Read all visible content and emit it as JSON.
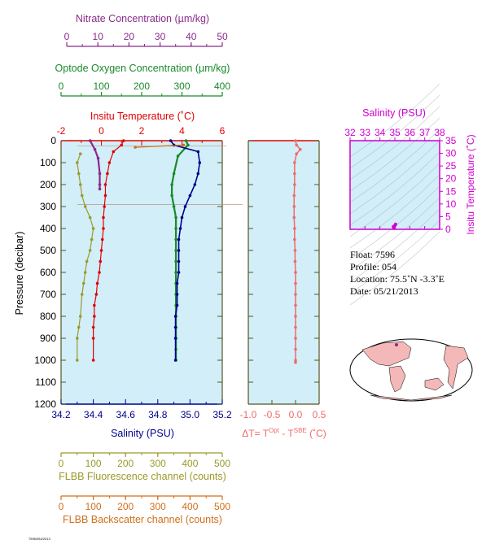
{
  "colors": {
    "nitrate": "#8b2a8b",
    "oxygen": "#1a8a2a",
    "temperature": "#e00000",
    "salinity": "#00008b",
    "fluorescence": "#9a9a2a",
    "backscatter": "#d0701a",
    "delta": "#f06a6a",
    "ts_axis": "#d000d0",
    "plot_bg": "#d2eef8",
    "land": "#f4b8b8"
  },
  "axes": {
    "nitrate": {
      "label": "Nitrate Concentration (µm/kg)",
      "ticks": [
        "0",
        "10",
        "20",
        "30",
        "40",
        "50"
      ],
      "range": [
        0,
        50
      ]
    },
    "oxygen": {
      "label": "Optode Oxygen Concentration (µm/kg)",
      "ticks": [
        "0",
        "100",
        "200",
        "300",
        "400"
      ],
      "range": [
        0,
        400
      ]
    },
    "temperature": {
      "label": "Insitu Temperature (˚C)",
      "ticks": [
        "-2",
        "0",
        "2",
        "4",
        "6"
      ],
      "range": [
        -2,
        6
      ]
    },
    "salinity": {
      "label": "Salinity (PSU)",
      "ticks": [
        "34.2",
        "34.4",
        "34.6",
        "34.8",
        "35.0",
        "35.2"
      ],
      "range": [
        34.2,
        35.2
      ]
    },
    "pressure": {
      "label": "Pressure (decibar)",
      "ticks": [
        "0",
        "100",
        "200",
        "300",
        "400",
        "500",
        "600",
        "700",
        "800",
        "900",
        "1000",
        "1100",
        "1200"
      ],
      "range": [
        0,
        1200
      ]
    },
    "fluorescence": {
      "label": "FLBB Fluorescence channel (counts)",
      "ticks": [
        "0",
        "100",
        "200",
        "300",
        "400",
        "500"
      ],
      "range": [
        0,
        500
      ]
    },
    "backscatter": {
      "label": "FLBB Backscatter channel (counts)",
      "ticks": [
        "0",
        "100",
        "200",
        "300",
        "400",
        "500"
      ],
      "range": [
        0,
        500
      ]
    },
    "delta": {
      "label_prefix": "ΔT= T",
      "sup1": "Opt",
      "label_mid": " - T",
      "sup2": "SBE",
      "label_suffix": " (˚C)",
      "ticks": [
        "-1.0",
        "-0.5",
        "0.0",
        "0.5"
      ],
      "range": [
        -1.0,
        0.5
      ]
    },
    "ts_salinity": {
      "label": "Salinity (PSU)",
      "ticks": [
        "32",
        "33",
        "34",
        "35",
        "36",
        "37",
        "38"
      ],
      "range": [
        32,
        38
      ]
    },
    "ts_temperature": {
      "label": "Insitu Temperature (˚C)",
      "ticks": [
        "0",
        "5",
        "10",
        "15",
        "20",
        "25",
        "30",
        "35"
      ],
      "range": [
        0,
        35
      ]
    }
  },
  "info": {
    "float": "Float:  7596",
    "profile": "Profile:  054",
    "location": "Location:  75.5˚N  -3.3˚E",
    "date": "Date:  05/21/2013"
  },
  "footer_tag": "7596/054/2013",
  "chart_data": [
    {
      "type": "line",
      "title": "",
      "xlabel": "Insitu Temperature (˚C)",
      "ylabel": "Pressure (decibar)",
      "xlim": [
        -2,
        6
      ],
      "ylim": [
        1200,
        0
      ],
      "series": [
        {
          "name": "Insitu Temperature (˚C)",
          "x": [
            1.1,
            1.0,
            0.6,
            0.4,
            0.3,
            0.2,
            0.2,
            0.15,
            0.1,
            0.1,
            0.05,
            0.0,
            -0.05,
            -0.1,
            -0.2,
            -0.25,
            -0.35,
            -0.35,
            -0.4,
            -0.4,
            -0.4
          ],
          "y": [
            0,
            20,
            50,
            100,
            150,
            200,
            250,
            300,
            350,
            400,
            450,
            500,
            550,
            600,
            650,
            700,
            750,
            800,
            850,
            900,
            1000
          ]
        }
      ]
    },
    {
      "type": "line",
      "xlabel": "Salinity (PSU)",
      "ylabel": "Pressure (decibar)",
      "xlim": [
        34.2,
        35.2
      ],
      "ylim": [
        1200,
        0
      ],
      "series": [
        {
          "name": "Salinity (PSU)",
          "x": [
            34.88,
            34.9,
            35.05,
            35.06,
            35.05,
            35.03,
            35.0,
            34.97,
            34.95,
            34.94,
            34.93,
            34.93,
            34.93,
            34.93,
            34.92,
            34.92,
            34.92,
            34.91,
            34.91,
            34.91,
            34.91
          ],
          "y": [
            0,
            20,
            50,
            100,
            150,
            200,
            250,
            300,
            350,
            400,
            450,
            500,
            550,
            600,
            650,
            700,
            750,
            800,
            850,
            900,
            1000
          ]
        }
      ]
    },
    {
      "type": "line",
      "xlabel": "Optode Oxygen Concentration (µm/kg)",
      "ylabel": "Pressure (decibar)",
      "xlim": [
        0,
        400
      ],
      "ylim": [
        1200,
        0
      ],
      "series": [
        {
          "name": "Optode Oxygen Concentration (µm/kg)",
          "x": [
            310,
            315,
            290,
            280,
            275,
            275,
            280,
            285,
            285,
            285,
            285,
            285,
            285,
            285,
            285,
            285,
            285,
            285,
            285,
            285,
            285
          ],
          "y": [
            0,
            20,
            70,
            150,
            200,
            250,
            300,
            350,
            400,
            450,
            500,
            550,
            600,
            650,
            700,
            750,
            800,
            850,
            900,
            950,
            1000
          ]
        }
      ]
    },
    {
      "type": "line",
      "xlabel": "Nitrate Concentration (µm/kg)",
      "ylabel": "Pressure (decibar)",
      "xlim": [
        0,
        50
      ],
      "ylim": [
        1200,
        0
      ],
      "series": [
        {
          "name": "Nitrate Concentration (µm/kg)",
          "x": [
            9,
            10.5,
            11.5,
            12,
            12,
            12
          ],
          "y": [
            0,
            40,
            80,
            150,
            200,
            220
          ]
        }
      ]
    },
    {
      "type": "line",
      "xlabel": "FLBB Fluorescence channel (counts)",
      "ylabel": "Pressure (decibar)",
      "xlim": [
        0,
        500
      ],
      "ylim": [
        1200,
        0
      ],
      "series": [
        {
          "name": "FLBB Fluorescence channel (counts)",
          "x": [
            60,
            50,
            55,
            60,
            65,
            75,
            90,
            100,
            95,
            90,
            80,
            75,
            70,
            65,
            60,
            55,
            50,
            50
          ],
          "y": [
            60,
            100,
            150,
            200,
            250,
            300,
            350,
            400,
            450,
            500,
            550,
            600,
            650,
            700,
            800,
            850,
            900,
            1000
          ]
        }
      ]
    },
    {
      "type": "line",
      "xlabel": "FLBB Backscatter channel (counts)",
      "ylabel": "Pressure (decibar)",
      "xlim": [
        0,
        500
      ],
      "ylim": [
        1200,
        0
      ],
      "series": [
        {
          "name": "FLBB Backscatter channel (counts)",
          "x": [
            380,
            230
          ],
          "y": [
            20,
            30
          ]
        }
      ]
    },
    {
      "type": "line",
      "xlabel": "ΔT= T Opt - T SBE (˚C)",
      "ylabel": "Pressure (decibar)",
      "xlim": [
        -1.0,
        0.5
      ],
      "ylim": [
        1200,
        0
      ],
      "series": [
        {
          "name": "ΔT",
          "x": [
            0.0,
            0.02,
            0.1,
            0.02,
            -0.02,
            -0.02,
            -0.02,
            -0.03,
            -0.03,
            -0.03,
            -0.02,
            -0.02,
            -0.01,
            -0.01,
            0.0,
            0.0,
            0.0,
            0.0,
            0.0,
            0.0,
            0.0,
            0.0,
            0.0,
            0.0
          ],
          "y": [
            0,
            20,
            40,
            60,
            100,
            150,
            200,
            250,
            300,
            350,
            400,
            450,
            500,
            550,
            600,
            650,
            700,
            750,
            800,
            850,
            900,
            950,
            1000,
            1010
          ]
        }
      ]
    },
    {
      "type": "scatter",
      "xlabel": "Salinity (PSU)",
      "ylabel": "Insitu Temperature (˚C)",
      "xlim": [
        32,
        38
      ],
      "ylim": [
        0,
        35
      ],
      "series": [
        {
          "name": "T-S",
          "x": [
            34.9,
            35.0,
            35.05,
            34.95
          ],
          "y": [
            1.0,
            1.5,
            2.0,
            0.5
          ]
        }
      ]
    }
  ]
}
